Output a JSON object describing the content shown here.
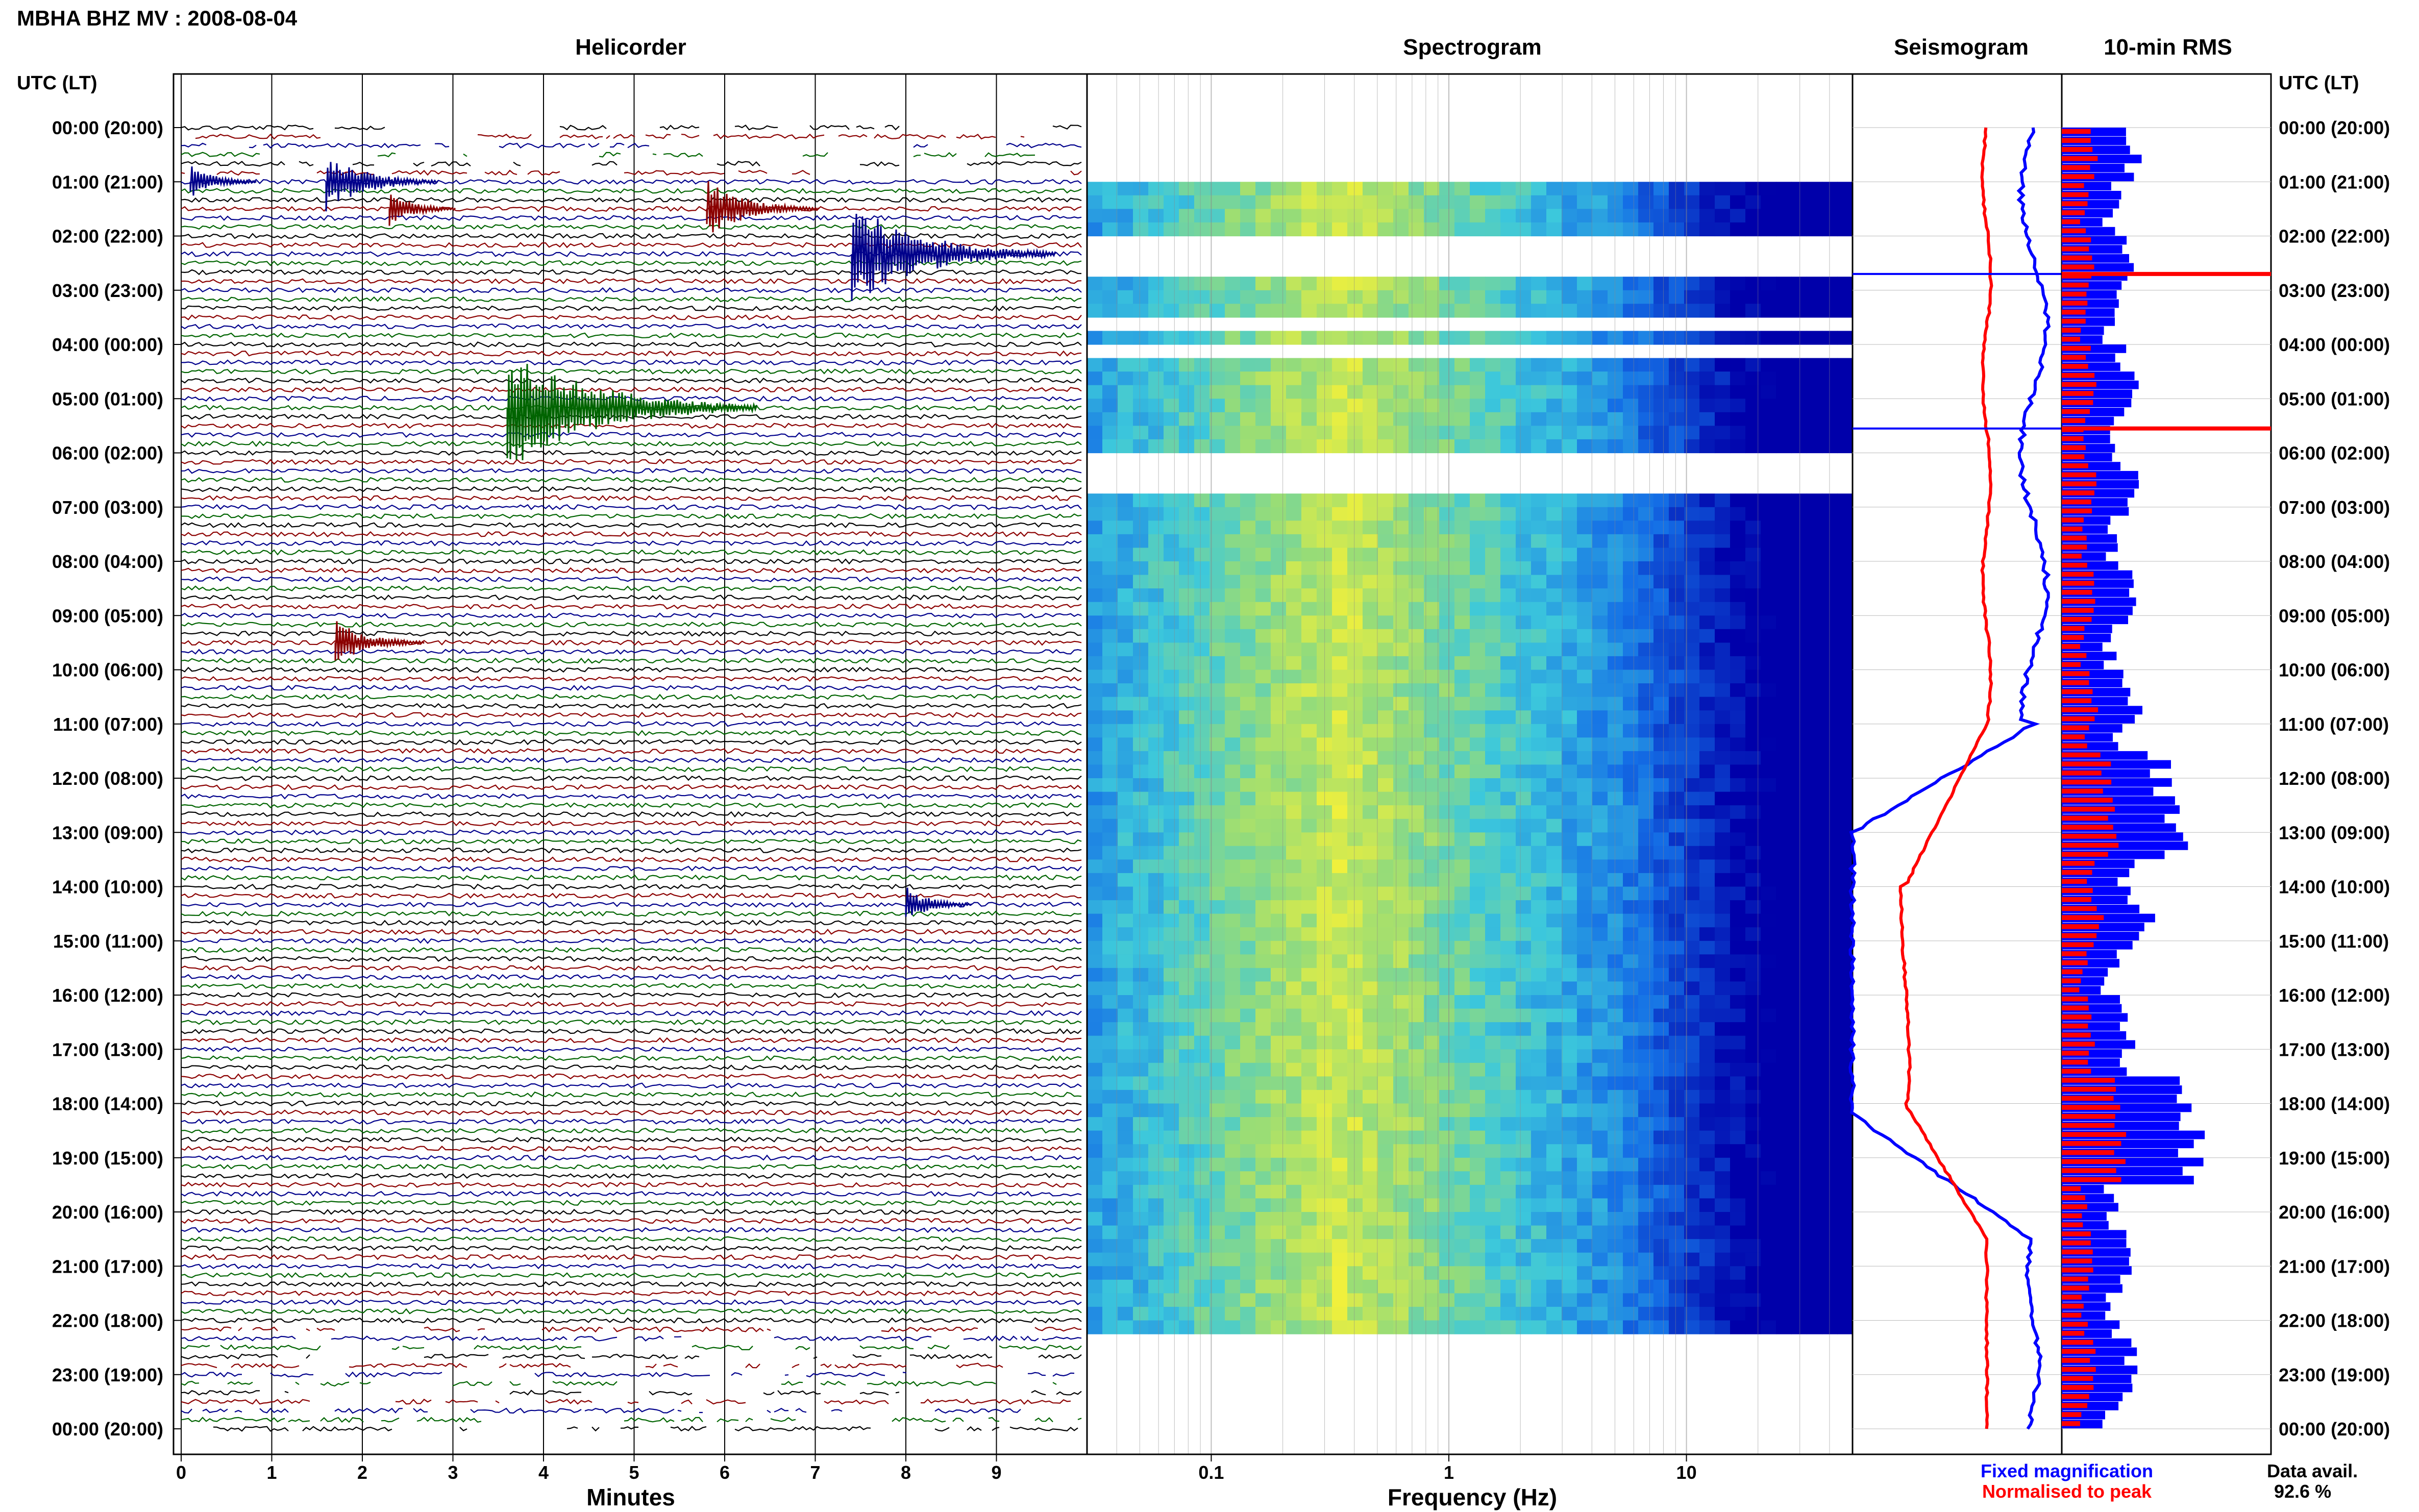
{
  "header": {
    "title": "MBHA BHZ MV : 2008-08-04",
    "utc_lt_label": "UTC (LT)"
  },
  "panels": {
    "helicorder": "Helicorder",
    "spectrogram": "Spectrogram",
    "seismogram": "Seismogram",
    "rms": "10-min RMS"
  },
  "axes": {
    "helicorder_xlabel": "Minutes",
    "spectrogram_xlabel": "Frequency (Hz)"
  },
  "legend": {
    "fixed": "Fixed magnification",
    "normalised": "Normalised to peak",
    "fixed_color": "#0000ff",
    "normalised_color": "#ff0000"
  },
  "availability": {
    "label": "Data avail.",
    "value": "92.6 %"
  },
  "colors": {
    "trace_black": "#000000",
    "trace_red": "#8b0000",
    "trace_blue": "#00008b",
    "trace_green": "#006400",
    "spectrogram_low": "#0000c8",
    "spectrogram_high": "#f0f040",
    "rms_red": "#ff0000",
    "rms_blue": "#0000ff"
  },
  "chart_data": [
    {
      "type": "line",
      "title": "Helicorder",
      "xlabel": "Minutes",
      "x_ticks": [
        "0",
        "1",
        "2",
        "3",
        "4",
        "5",
        "6",
        "7",
        "8",
        "9"
      ],
      "xlim": [
        0,
        10
      ],
      "y_ticks": [
        "00:00 (20:00)",
        "01:00 (21:00)",
        "02:00 (22:00)",
        "03:00 (23:00)",
        "04:00 (00:00)",
        "05:00 (01:00)",
        "06:00 (02:00)",
        "07:00 (03:00)",
        "08:00 (04:00)",
        "09:00 (05:00)",
        "10:00 (06:00)",
        "11:00 (07:00)",
        "12:00 (08:00)",
        "13:00 (09:00)",
        "14:00 (10:00)",
        "15:00 (11:00)",
        "16:00 (12:00)",
        "17:00 (13:00)",
        "18:00 (14:00)",
        "19:00 (15:00)",
        "20:00 (16:00)",
        "21:00 (17:00)",
        "22:00 (18:00)",
        "23:00 (19:00)",
        "00:00 (20:00)"
      ],
      "trace_count": 145,
      "events": [
        {
          "hour": 1.0,
          "minute": 0.1,
          "size": 1
        },
        {
          "hour": 1.0,
          "minute": 1.6,
          "size": 2
        },
        {
          "hour": 1.5,
          "minute": 2.3,
          "size": 1
        },
        {
          "hour": 1.5,
          "minute": 5.8,
          "size": 2
        },
        {
          "hour": 2.33,
          "minute": 7.4,
          "size": 4
        },
        {
          "hour": 5.17,
          "minute": 3.6,
          "size": 5
        },
        {
          "hour": 9.5,
          "minute": 1.7,
          "size": 1.5
        },
        {
          "hour": 14.33,
          "minute": 8.0,
          "size": 1
        }
      ]
    },
    {
      "type": "heatmap",
      "title": "Spectrogram",
      "xlabel": "Frequency (Hz)",
      "x_scale": "log",
      "xlim": [
        0.03,
        50
      ],
      "x_ticks": [
        "0.1",
        "1",
        "10"
      ],
      "ylim_hours": [
        0,
        24
      ],
      "data_gaps_hours": [
        [
          0,
          1
        ],
        [
          2,
          2.6
        ],
        [
          3.5,
          3.6
        ],
        [
          4.0,
          4.05
        ],
        [
          5.95,
          6.6
        ],
        [
          22.1,
          24
        ]
      ],
      "peak_frequency_hz": 0.35
    },
    {
      "type": "line",
      "title": "Seismogram",
      "series": [
        {
          "name": "Fixed magnification",
          "color": "#0000ff"
        },
        {
          "name": "Normalised to peak",
          "color": "#ff0000"
        }
      ]
    },
    {
      "type": "bar",
      "title": "10-min RMS",
      "series": [
        {
          "name": "Fixed magnification",
          "color": "#0000ff"
        },
        {
          "name": "Normalised to peak",
          "color": "#ff0000"
        }
      ]
    }
  ]
}
